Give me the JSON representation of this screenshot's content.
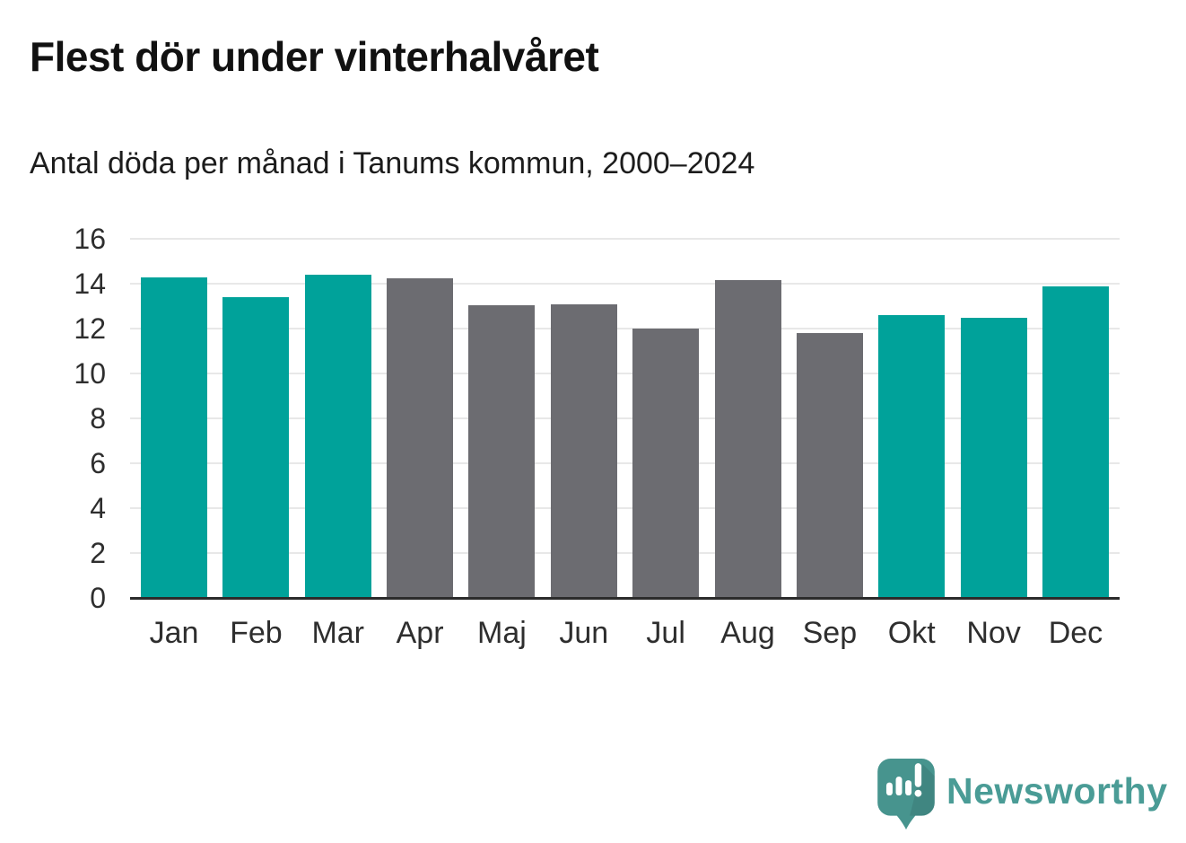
{
  "header": {
    "title": "Flest dör under vinterhalvåret",
    "subtitle": "Antal döda per månad i Tanums kommun, 2000–2024"
  },
  "chart_data": {
    "type": "bar",
    "title": "Flest dör under vinterhalvåret",
    "subtitle": "Antal döda per månad i Tanums kommun, 2000–2024",
    "categories": [
      "Jan",
      "Feb",
      "Mar",
      "Apr",
      "Maj",
      "Jun",
      "Jul",
      "Aug",
      "Sep",
      "Okt",
      "Nov",
      "Dec"
    ],
    "values": [
      14.3,
      13.4,
      14.4,
      14.25,
      13.05,
      13.1,
      12.0,
      14.15,
      11.8,
      12.6,
      12.5,
      13.9
    ],
    "bar_color_keys": [
      "teal",
      "teal",
      "teal",
      "gray",
      "gray",
      "gray",
      "gray",
      "gray",
      "gray",
      "teal",
      "teal",
      "teal"
    ],
    "palette": {
      "teal": "#00A29A",
      "gray": "#6C6C71",
      "grid": "#E8E8E8",
      "axis": "#2B2B2B"
    },
    "xlabel": "",
    "ylabel": "",
    "ylim": [
      0,
      16
    ],
    "yticks": [
      0,
      2,
      4,
      6,
      8,
      10,
      12,
      14,
      16
    ],
    "grid": true,
    "legend": false
  },
  "footer": {
    "brand": "Newsworthy",
    "brand_text_color": "#4A9C96",
    "brand_icon": "newsworthy-speech-bubble-chart-icon",
    "brand_icon_color": "#47948E"
  }
}
